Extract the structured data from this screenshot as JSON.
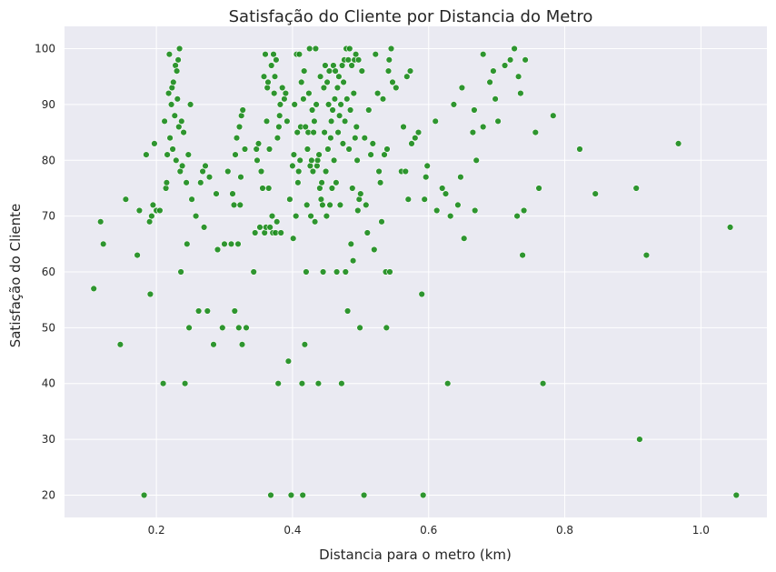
{
  "chart_data": {
    "type": "scatter",
    "title": "Satisfação do Cliente por Distancia do Metro",
    "xlabel": "Distancia para o metro (km)",
    "ylabel": "Satisfação do Cliente",
    "xlim": [
      0.065,
      1.097
    ],
    "ylim": [
      16,
      104
    ],
    "xticks": [
      0.2,
      0.4,
      0.6,
      0.8,
      1.0
    ],
    "xtick_labels": [
      "0.2",
      "0.4",
      "0.6",
      "0.8",
      "1.0"
    ],
    "yticks": [
      20,
      30,
      40,
      50,
      60,
      70,
      80,
      90,
      100
    ],
    "ytick_labels": [
      "20",
      "30",
      "40",
      "50",
      "60",
      "70",
      "80",
      "90",
      "100"
    ],
    "grid": true,
    "colors": {
      "background": "#eaeaf2",
      "grid": "#ffffff",
      "point": "#1a8c1a",
      "point_edge": "#ffffff"
    },
    "points": [
      [
        0.108,
        57
      ],
      [
        0.118,
        69
      ],
      [
        0.122,
        65
      ],
      [
        0.147,
        47
      ],
      [
        0.155,
        73
      ],
      [
        0.172,
        63
      ],
      [
        0.175,
        71
      ],
      [
        0.182,
        20
      ],
      [
        0.185,
        81
      ],
      [
        0.19,
        69
      ],
      [
        0.191,
        56
      ],
      [
        0.193,
        70
      ],
      [
        0.195,
        72
      ],
      [
        0.197,
        83
      ],
      [
        0.2,
        71
      ],
      [
        0.205,
        71
      ],
      [
        0.21,
        40
      ],
      [
        0.212,
        87
      ],
      [
        0.214,
        75
      ],
      [
        0.215,
        76
      ],
      [
        0.216,
        81
      ],
      [
        0.218,
        92
      ],
      [
        0.219,
        99
      ],
      [
        0.22,
        84
      ],
      [
        0.222,
        90
      ],
      [
        0.223,
        93
      ],
      [
        0.224,
        82
      ],
      [
        0.225,
        94
      ],
      [
        0.227,
        88
      ],
      [
        0.228,
        97
      ],
      [
        0.229,
        80
      ],
      [
        0.23,
        96
      ],
      [
        0.231,
        91
      ],
      [
        0.232,
        98
      ],
      [
        0.233,
        86
      ],
      [
        0.234,
        100
      ],
      [
        0.235,
        78
      ],
      [
        0.236,
        60
      ],
      [
        0.237,
        87
      ],
      [
        0.238,
        79
      ],
      [
        0.24,
        85
      ],
      [
        0.242,
        40
      ],
      [
        0.244,
        76
      ],
      [
        0.245,
        65
      ],
      [
        0.247,
        81
      ],
      [
        0.248,
        50
      ],
      [
        0.25,
        90
      ],
      [
        0.252,
        73
      ],
      [
        0.258,
        70
      ],
      [
        0.262,
        53
      ],
      [
        0.265,
        76
      ],
      [
        0.268,
        78
      ],
      [
        0.27,
        68
      ],
      [
        0.272,
        79
      ],
      [
        0.275,
        53
      ],
      [
        0.278,
        77
      ],
      [
        0.284,
        47
      ],
      [
        0.288,
        74
      ],
      [
        0.29,
        64
      ],
      [
        0.297,
        50
      ],
      [
        0.3,
        65
      ],
      [
        0.305,
        78
      ],
      [
        0.31,
        65
      ],
      [
        0.312,
        74
      ],
      [
        0.314,
        72
      ],
      [
        0.315,
        53
      ],
      [
        0.316,
        81
      ],
      [
        0.318,
        84
      ],
      [
        0.32,
        65
      ],
      [
        0.321,
        50
      ],
      [
        0.322,
        86
      ],
      [
        0.323,
        72
      ],
      [
        0.324,
        77
      ],
      [
        0.325,
        88
      ],
      [
        0.326,
        47
      ],
      [
        0.327,
        89
      ],
      [
        0.33,
        82
      ],
      [
        0.332,
        50
      ],
      [
        0.343,
        60
      ],
      [
        0.345,
        67
      ],
      [
        0.347,
        82
      ],
      [
        0.348,
        80
      ],
      [
        0.35,
        83
      ],
      [
        0.352,
        68
      ],
      [
        0.354,
        78
      ],
      [
        0.356,
        75
      ],
      [
        0.358,
        95
      ],
      [
        0.359,
        67
      ],
      [
        0.36,
        99
      ],
      [
        0.361,
        68
      ],
      [
        0.362,
        87
      ],
      [
        0.363,
        93
      ],
      [
        0.364,
        94
      ],
      [
        0.365,
        75
      ],
      [
        0.366,
        82
      ],
      [
        0.367,
        68
      ],
      [
        0.368,
        20
      ],
      [
        0.369,
        97
      ],
      [
        0.37,
        70
      ],
      [
        0.371,
        67
      ],
      [
        0.372,
        99
      ],
      [
        0.373,
        92
      ],
      [
        0.374,
        95
      ],
      [
        0.375,
        67
      ],
      [
        0.376,
        98
      ],
      [
        0.377,
        69
      ],
      [
        0.378,
        84
      ],
      [
        0.379,
        40
      ],
      [
        0.38,
        86
      ],
      [
        0.381,
        88
      ],
      [
        0.382,
        90
      ],
      [
        0.383,
        67
      ],
      [
        0.385,
        93
      ],
      [
        0.388,
        91
      ],
      [
        0.39,
        92
      ],
      [
        0.392,
        87
      ],
      [
        0.394,
        44
      ],
      [
        0.396,
        73
      ],
      [
        0.398,
        20
      ],
      [
        0.4,
        79
      ],
      [
        0.401,
        66
      ],
      [
        0.402,
        81
      ],
      [
        0.403,
        90
      ],
      [
        0.405,
        70
      ],
      [
        0.406,
        99
      ],
      [
        0.407,
        85
      ],
      [
        0.408,
        76
      ],
      [
        0.409,
        78
      ],
      [
        0.41,
        99
      ],
      [
        0.411,
        80
      ],
      [
        0.412,
        86
      ],
      [
        0.413,
        94
      ],
      [
        0.414,
        40
      ],
      [
        0.415,
        20
      ],
      [
        0.416,
        91
      ],
      [
        0.417,
        96
      ],
      [
        0.418,
        47
      ],
      [
        0.419,
        86
      ],
      [
        0.42,
        60
      ],
      [
        0.421,
        72
      ],
      [
        0.422,
        82
      ],
      [
        0.423,
        85
      ],
      [
        0.424,
        92
      ],
      [
        0.425,
        100
      ],
      [
        0.426,
        79
      ],
      [
        0.427,
        70
      ],
      [
        0.428,
        80
      ],
      [
        0.429,
        89
      ],
      [
        0.43,
        78
      ],
      [
        0.431,
        85
      ],
      [
        0.432,
        87
      ],
      [
        0.433,
        69
      ],
      [
        0.434,
        100
      ],
      [
        0.435,
        90
      ],
      [
        0.436,
        79
      ],
      [
        0.437,
        80
      ],
      [
        0.438,
        40
      ],
      [
        0.439,
        81
      ],
      [
        0.44,
        75
      ],
      [
        0.441,
        95
      ],
      [
        0.442,
        73
      ],
      [
        0.443,
        76
      ],
      [
        0.444,
        72
      ],
      [
        0.445,
        60
      ],
      [
        0.446,
        93
      ],
      [
        0.447,
        85
      ],
      [
        0.448,
        97
      ],
      [
        0.449,
        78
      ],
      [
        0.45,
        70
      ],
      [
        0.451,
        94
      ],
      [
        0.452,
        82
      ],
      [
        0.453,
        90
      ],
      [
        0.454,
        96
      ],
      [
        0.455,
        72
      ],
      [
        0.456,
        84
      ],
      [
        0.457,
        87
      ],
      [
        0.458,
        75
      ],
      [
        0.459,
        89
      ],
      [
        0.46,
        97
      ],
      [
        0.461,
        80
      ],
      [
        0.462,
        91
      ],
      [
        0.463,
        96
      ],
      [
        0.464,
        76
      ],
      [
        0.465,
        60
      ],
      [
        0.466,
        93
      ],
      [
        0.467,
        85
      ],
      [
        0.468,
        95
      ],
      [
        0.469,
        88
      ],
      [
        0.47,
        72
      ],
      [
        0.471,
        90
      ],
      [
        0.472,
        40
      ],
      [
        0.473,
        97
      ],
      [
        0.474,
        83
      ],
      [
        0.475,
        94
      ],
      [
        0.476,
        98
      ],
      [
        0.477,
        87
      ],
      [
        0.478,
        60
      ],
      [
        0.479,
        100
      ],
      [
        0.48,
        91
      ],
      [
        0.481,
        53
      ],
      [
        0.482,
        98
      ],
      [
        0.483,
        82
      ],
      [
        0.484,
        100
      ],
      [
        0.485,
        89
      ],
      [
        0.486,
        65
      ],
      [
        0.487,
        97
      ],
      [
        0.488,
        75
      ],
      [
        0.489,
        62
      ],
      [
        0.49,
        92
      ],
      [
        0.491,
        98
      ],
      [
        0.492,
        84
      ],
      [
        0.493,
        99
      ],
      [
        0.494,
        86
      ],
      [
        0.495,
        80
      ],
      [
        0.496,
        71
      ],
      [
        0.497,
        98
      ],
      [
        0.498,
        73
      ],
      [
        0.499,
        50
      ],
      [
        0.5,
        74
      ],
      [
        0.502,
        96
      ],
      [
        0.505,
        20
      ],
      [
        0.506,
        84
      ],
      [
        0.508,
        72
      ],
      [
        0.51,
        67
      ],
      [
        0.512,
        89
      ],
      [
        0.515,
        81
      ],
      [
        0.518,
        83
      ],
      [
        0.52,
        64
      ],
      [
        0.522,
        99
      ],
      [
        0.525,
        92
      ],
      [
        0.527,
        78
      ],
      [
        0.529,
        76
      ],
      [
        0.531,
        69
      ],
      [
        0.533,
        91
      ],
      [
        0.535,
        81
      ],
      [
        0.537,
        60
      ],
      [
        0.538,
        50
      ],
      [
        0.539,
        82
      ],
      [
        0.541,
        96
      ],
      [
        0.542,
        98
      ],
      [
        0.543,
        60
      ],
      [
        0.545,
        100
      ],
      [
        0.547,
        94
      ],
      [
        0.552,
        93
      ],
      [
        0.56,
        78
      ],
      [
        0.563,
        86
      ],
      [
        0.566,
        78
      ],
      [
        0.568,
        95
      ],
      [
        0.57,
        73
      ],
      [
        0.573,
        96
      ],
      [
        0.575,
        83
      ],
      [
        0.58,
        84
      ],
      [
        0.585,
        85
      ],
      [
        0.59,
        56
      ],
      [
        0.592,
        20
      ],
      [
        0.594,
        73
      ],
      [
        0.596,
        77
      ],
      [
        0.598,
        79
      ],
      [
        0.61,
        87
      ],
      [
        0.612,
        71
      ],
      [
        0.62,
        75
      ],
      [
        0.625,
        74
      ],
      [
        0.628,
        40
      ],
      [
        0.632,
        70
      ],
      [
        0.637,
        90
      ],
      [
        0.643,
        72
      ],
      [
        0.647,
        77
      ],
      [
        0.649,
        93
      ],
      [
        0.652,
        66
      ],
      [
        0.665,
        85
      ],
      [
        0.667,
        89
      ],
      [
        0.668,
        71
      ],
      [
        0.67,
        80
      ],
      [
        0.68,
        86
      ],
      [
        0.68,
        99
      ],
      [
        0.69,
        94
      ],
      [
        0.695,
        96
      ],
      [
        0.698,
        91
      ],
      [
        0.702,
        87
      ],
      [
        0.712,
        97
      ],
      [
        0.72,
        98
      ],
      [
        0.726,
        100
      ],
      [
        0.73,
        70
      ],
      [
        0.732,
        95
      ],
      [
        0.735,
        92
      ],
      [
        0.738,
        63
      ],
      [
        0.74,
        71
      ],
      [
        0.742,
        98
      ],
      [
        0.757,
        85
      ],
      [
        0.762,
        75
      ],
      [
        0.768,
        40
      ],
      [
        0.783,
        88
      ],
      [
        0.822,
        82
      ],
      [
        0.845,
        74
      ],
      [
        0.905,
        75
      ],
      [
        0.91,
        30
      ],
      [
        0.92,
        63
      ],
      [
        0.967,
        83
      ],
      [
        1.043,
        68
      ],
      [
        1.052,
        20
      ]
    ]
  }
}
